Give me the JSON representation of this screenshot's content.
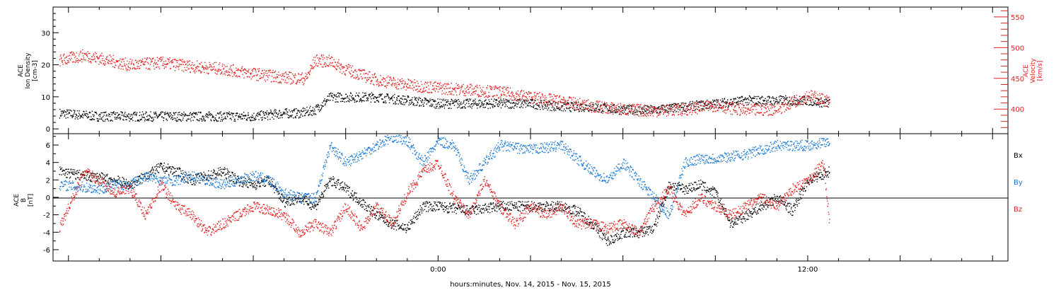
{
  "x_axis": {
    "label": "hours:minutes, Nov. 14, 2015 - Nov. 15, 2015",
    "start_hour": -12.5,
    "end_hour": 18.5,
    "tick_labels": [
      {
        "hour": 0,
        "text": "0:00"
      },
      {
        "hour": 12,
        "text": "12:00"
      }
    ]
  },
  "colors": {
    "black": "#000000",
    "red": "#e02020",
    "blue": "#1a78d2"
  },
  "chart_data": [
    {
      "type": "scatter",
      "name": "plasma",
      "left_axis": {
        "label_lines": [
          "ACE",
          "Ion Density",
          "[cm-3]"
        ],
        "ylim": [
          -1.5,
          38
        ],
        "ticks": [
          0,
          10,
          20,
          30
        ]
      },
      "right_axis": {
        "label_lines": [
          "ACE",
          "Velocity",
          "[km/s]"
        ],
        "ylim": [
          360,
          566
        ],
        "ticks": [
          400,
          450,
          500,
          550
        ],
        "color": "#e02020"
      },
      "series": [
        {
          "name": "",
          "axis": "left",
          "color": "#000000",
          "x": [
            -12.3,
            -11,
            -10,
            -9,
            -8,
            -7,
            -6,
            -5,
            -4.5,
            -4,
            -3.5,
            -3,
            -2,
            -1,
            0,
            1,
            2,
            3,
            4,
            5,
            6,
            7,
            8,
            9,
            10,
            11,
            12,
            12.7
          ],
          "y": [
            5,
            4,
            4,
            4,
            4,
            4,
            4,
            5,
            5,
            6,
            10,
            10,
            10,
            9,
            8,
            8,
            8,
            8,
            7,
            7,
            6,
            6,
            7,
            8,
            9,
            9,
            9,
            8
          ]
        },
        {
          "name": "",
          "axis": "right",
          "color": "#e02020",
          "x": [
            -12.3,
            -11.5,
            -11,
            -10,
            -9,
            -8,
            -7,
            -6,
            -5,
            -4.3,
            -4,
            -3.5,
            -3,
            -2,
            -1,
            0,
            1,
            2,
            3,
            4,
            5,
            6,
            7,
            8,
            9,
            10,
            11,
            12,
            12.7
          ],
          "y": [
            480,
            488,
            483,
            472,
            476,
            470,
            466,
            458,
            452,
            450,
            480,
            478,
            465,
            448,
            440,
            435,
            432,
            428,
            420,
            413,
            405,
            400,
            398,
            400,
            407,
            398,
            401,
            423,
            413
          ]
        }
      ]
    },
    {
      "type": "scatter",
      "name": "magnetic",
      "left_axis": {
        "label_lines": [
          "ACE",
          "B",
          "[nT]"
        ],
        "ylim": [
          -7.3,
          7.3
        ],
        "ticks": [
          -6,
          -4,
          -2,
          0,
          2,
          4,
          6
        ]
      },
      "legend": [
        "Bx",
        "By",
        "Bz"
      ],
      "series": [
        {
          "name": "Bx",
          "color": "#000000",
          "x": [
            -12.3,
            -11.5,
            -11,
            -10.5,
            -10,
            -9,
            -8.5,
            -8,
            -7,
            -6.5,
            -6,
            -5.5,
            -5,
            -4.5,
            -4,
            -3.5,
            -3,
            -2.5,
            -2,
            -1.5,
            -1,
            -0.5,
            0,
            1,
            2,
            3,
            4,
            4.5,
            5,
            5.5,
            6,
            6.5,
            7,
            7.5,
            8,
            8.5,
            9,
            9.5,
            10,
            10.5,
            11,
            11.5,
            12,
            12.7
          ],
          "y": [
            3,
            2.5,
            2.3,
            2,
            1.5,
            3.5,
            3,
            2,
            3,
            2,
            1.5,
            2,
            -0.5,
            0,
            -1,
            2,
            1,
            -0.5,
            -2,
            -3,
            -3.5,
            -1,
            -1,
            -1.5,
            -1,
            -1,
            -1,
            -1.5,
            -3,
            -5,
            -4,
            -4,
            -3.5,
            1.5,
            1,
            1.5,
            0.5,
            -3,
            -2,
            -1,
            0,
            -1.5,
            2,
            3
          ]
        },
        {
          "name": "By",
          "color": "#1a78d2",
          "x": [
            -12.3,
            -11.5,
            -11,
            -10.5,
            -10,
            -9.5,
            -9,
            -8.5,
            -8,
            -7,
            -6,
            -5.5,
            -5,
            -4.5,
            -4,
            -3.5,
            -3,
            -2.5,
            -2,
            -1.5,
            -1,
            -0.5,
            0,
            0.5,
            1,
            2,
            3,
            4,
            5,
            5.5,
            6,
            6.5,
            7,
            7.5,
            8,
            8.5,
            9,
            10,
            11,
            12,
            12.7
          ],
          "y": [
            1.5,
            1.2,
            1,
            1.5,
            1.5,
            2.5,
            2,
            2,
            2.5,
            1.5,
            2.5,
            2,
            0.5,
            0,
            0,
            6,
            4,
            5,
            6,
            7,
            6.5,
            4,
            6.5,
            6,
            2,
            6,
            5.5,
            6,
            3,
            2,
            4,
            2,
            0,
            -2,
            4,
            4.5,
            4.5,
            5,
            6,
            6,
            6.5
          ]
        },
        {
          "name": "Bz",
          "color": "#e02020",
          "x": [
            -12.3,
            -11.5,
            -11,
            -10.5,
            -10,
            -9.5,
            -9,
            -8.5,
            -8,
            -7.5,
            -7,
            -6.5,
            -6,
            -5.5,
            -5,
            -4.5,
            -4,
            -3.5,
            -3,
            -2.5,
            -2,
            -1.5,
            -1,
            -0.5,
            0,
            0.5,
            1,
            1.5,
            2,
            2.5,
            3,
            3.5,
            4,
            4.5,
            5,
            5.5,
            6,
            6.5,
            7,
            7.5,
            8,
            8.5,
            9,
            9.5,
            10,
            10.5,
            11,
            11.5,
            12,
            12.5,
            12.7
          ],
          "y": [
            -3.5,
            3,
            2,
            0.5,
            1,
            -2,
            1.5,
            -1,
            -2,
            -4,
            -3,
            -2,
            -1,
            -1.5,
            -2,
            -4,
            -3,
            -4,
            -1,
            -3.5,
            -1,
            -3,
            0.5,
            3,
            4,
            0,
            -2,
            2,
            -1,
            -3,
            -1,
            -2,
            -1,
            -3,
            -3,
            -3.5,
            -3,
            -4,
            -1,
            1,
            -2,
            0,
            -1,
            -2,
            -1,
            0,
            -1,
            1,
            2,
            4,
            -3
          ]
        }
      ]
    }
  ]
}
